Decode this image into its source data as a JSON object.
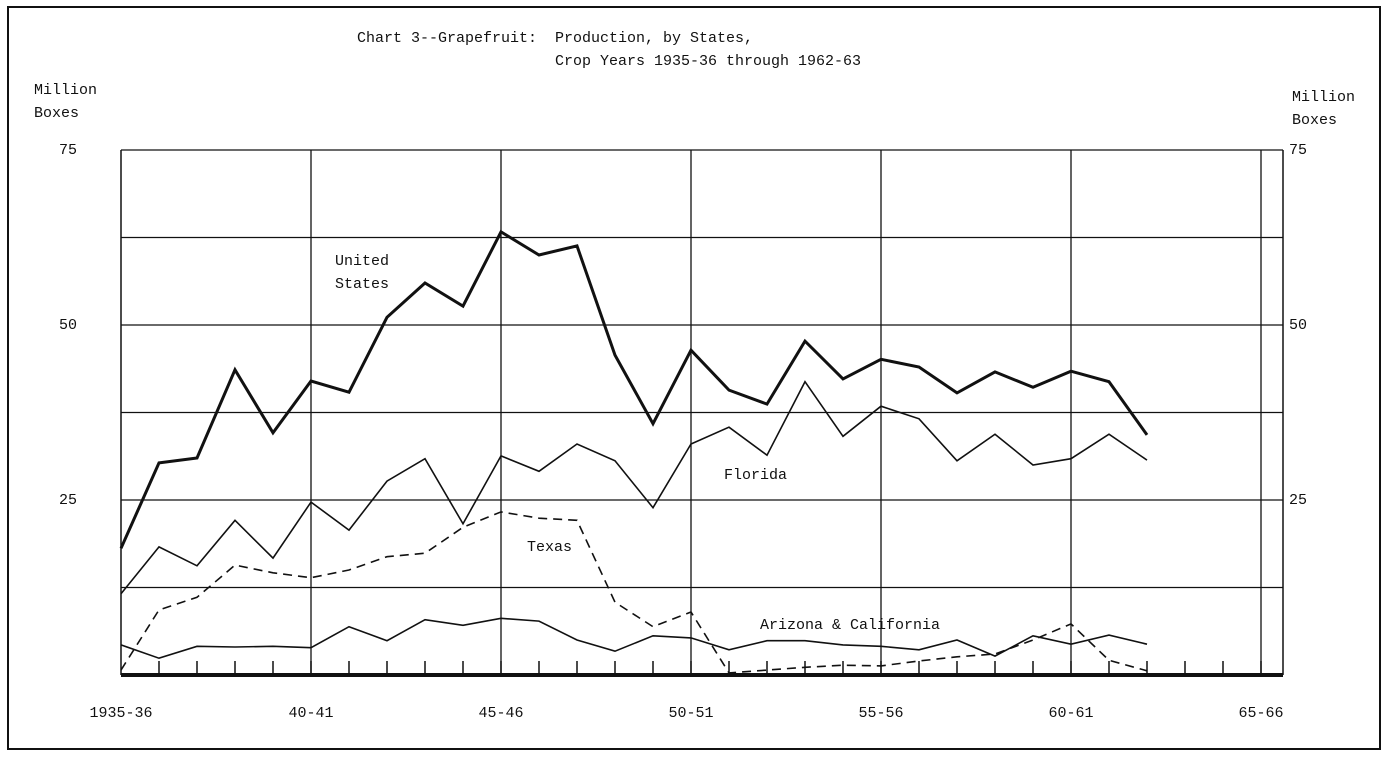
{
  "chart_data": {
    "type": "line",
    "title": "Chart 3--Grapefruit:",
    "subtitle": [
      "Production, by States,",
      "Crop Years 1935-36 through 1962-63"
    ],
    "ylabel": "Million Boxes",
    "y2label": "Million Boxes",
    "categories": [
      "1935-36",
      null,
      null,
      null,
      null,
      "40-41",
      null,
      null,
      null,
      null,
      "45-46",
      null,
      null,
      null,
      null,
      "50-51",
      null,
      null,
      null,
      null,
      "55-56",
      null,
      null,
      null,
      null,
      "60-61",
      null,
      null,
      null,
      null,
      "65-66"
    ],
    "ylim": [
      0,
      75
    ],
    "yticks": [
      25,
      50,
      75
    ],
    "y2lim": [
      0,
      75
    ],
    "y2ticks": [
      25,
      50,
      75
    ],
    "minor_yticks": [
      12.5,
      37.5,
      62.5
    ],
    "grid": true,
    "series": [
      {
        "name": "United States",
        "color": "#111111",
        "width": 3,
        "dashed": false,
        "values": [
          18.1,
          30.3,
          31,
          43.6,
          34.6,
          42,
          40.4,
          51.1,
          56,
          52.7,
          63.3,
          60,
          61.3,
          45.7,
          35.9,
          46.4,
          40.7,
          38.7,
          47.7,
          42.3,
          45.1,
          44,
          40.3,
          43.3,
          41.1,
          43.4,
          41.9,
          34.3,
          null,
          null,
          null
        ]
      },
      {
        "name": "Florida",
        "color": "#111111",
        "width": 1.6,
        "dashed": false,
        "values": [
          11.6,
          18.3,
          15.6,
          22.1,
          16.7,
          24.7,
          20.7,
          27.7,
          30.9,
          21.6,
          31.3,
          29.1,
          33,
          30.6,
          23.9,
          33,
          35.4,
          31.4,
          41.9,
          34.1,
          38.4,
          36.6,
          30.6,
          34.4,
          30,
          30.9,
          34.4,
          30.7,
          null,
          null,
          null
        ]
      },
      {
        "name": "Texas",
        "color": "#111111",
        "width": 1.6,
        "dashed": true,
        "values": [
          0.7,
          9.3,
          11.1,
          15.7,
          14.6,
          13.9,
          15,
          16.9,
          17.4,
          21.1,
          23.3,
          22.4,
          22.1,
          10.4,
          6.9,
          9,
          0.3,
          0.7,
          1.1,
          1.4,
          1.3,
          2,
          2.6,
          3,
          5,
          7.3,
          2.1,
          0.6,
          null,
          null,
          null
        ]
      },
      {
        "name": "Arizona & California",
        "color": "#111111",
        "width": 1.6,
        "dashed": false,
        "values": [
          4.3,
          2.4,
          4.1,
          4,
          4.1,
          3.9,
          6.9,
          4.9,
          7.9,
          7.1,
          8.1,
          7.7,
          5,
          3.4,
          5.6,
          5.3,
          3.6,
          4.9,
          4.9,
          4.3,
          4.1,
          3.6,
          5,
          2.7,
          5.6,
          4.4,
          5.7,
          4.4,
          null,
          null,
          null
        ]
      }
    ]
  }
}
